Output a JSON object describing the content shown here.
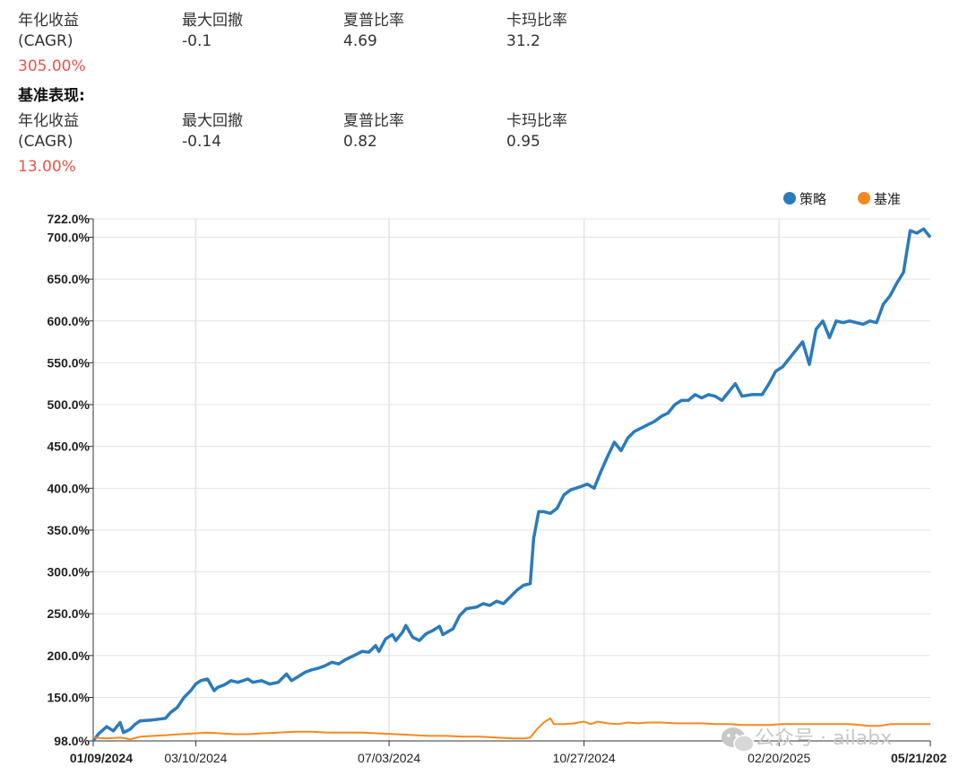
{
  "strategy_stats": {
    "cagr_label_1": "年化收益",
    "cagr_label_2": "(CAGR)",
    "cagr_value": "305.00%",
    "mdd_label": "最大回撤",
    "mdd_value": "-0.1",
    "sharpe_label": "夏普比率",
    "sharpe_value": "4.69",
    "calmar_label": "卡玛比率",
    "calmar_value": "31.2"
  },
  "benchmark_heading": "基准表现:",
  "benchmark_stats": {
    "cagr_label_1": "年化收益",
    "cagr_label_2": "(CAGR)",
    "cagr_value": "13.00%",
    "mdd_label": "最大回撤",
    "mdd_value": "-0.14",
    "sharpe_label": "夏普比率",
    "sharpe_value": "0.82",
    "calmar_label": "卡玛比率",
    "calmar_value": "0.95"
  },
  "watermark": "公众号 · ailabx",
  "chart_data": {
    "type": "line",
    "legend_position": "top-right",
    "grid": true,
    "x_tick_labels": [
      "01/09/2024",
      "03/10/2024",
      "07/03/2024",
      "10/27/2024",
      "02/20/2025",
      "05/21/202"
    ],
    "x_tick_days": [
      0,
      61,
      176,
      292,
      408,
      498
    ],
    "x_range_days": [
      0,
      498
    ],
    "y_ticks": [
      98,
      150,
      200,
      250,
      300,
      350,
      400,
      450,
      500,
      550,
      600,
      650,
      700,
      722
    ],
    "y_tick_labels": [
      "98.0%",
      "150.0%",
      "200.0%",
      "250.0%",
      "300.0%",
      "350.0%",
      "400.0%",
      "450.0%",
      "500.0%",
      "550.0%",
      "600.0%",
      "650.0%",
      "700.0%",
      "722.0%"
    ],
    "ylim": [
      98,
      722
    ],
    "series": [
      {
        "name": "策略",
        "color": "#2b7bba",
        "points": [
          [
            0,
            98
          ],
          [
            3,
            106
          ],
          [
            8,
            115
          ],
          [
            12,
            110
          ],
          [
            16,
            120
          ],
          [
            18,
            108
          ],
          [
            22,
            112
          ],
          [
            25,
            118
          ],
          [
            28,
            122
          ],
          [
            35,
            123
          ],
          [
            43,
            125
          ],
          [
            46,
            132
          ],
          [
            50,
            138
          ],
          [
            54,
            150
          ],
          [
            58,
            158
          ],
          [
            61,
            166
          ],
          [
            64,
            170
          ],
          [
            68,
            172
          ],
          [
            72,
            158
          ],
          [
            74,
            162
          ],
          [
            78,
            165
          ],
          [
            82,
            170
          ],
          [
            86,
            168
          ],
          [
            92,
            172
          ],
          [
            95,
            168
          ],
          [
            100,
            170
          ],
          [
            105,
            166
          ],
          [
            110,
            168
          ],
          [
            115,
            178
          ],
          [
            118,
            170
          ],
          [
            122,
            175
          ],
          [
            126,
            180
          ],
          [
            130,
            183
          ],
          [
            134,
            185
          ],
          [
            138,
            188
          ],
          [
            142,
            192
          ],
          [
            146,
            190
          ],
          [
            150,
            195
          ],
          [
            155,
            200
          ],
          [
            160,
            205
          ],
          [
            164,
            204
          ],
          [
            168,
            212
          ],
          [
            170,
            205
          ],
          [
            174,
            220
          ],
          [
            178,
            225
          ],
          [
            180,
            218
          ],
          [
            184,
            228
          ],
          [
            186,
            236
          ],
          [
            190,
            222
          ],
          [
            194,
            218
          ],
          [
            198,
            226
          ],
          [
            202,
            230
          ],
          [
            206,
            235
          ],
          [
            208,
            225
          ],
          [
            214,
            232
          ],
          [
            218,
            248
          ],
          [
            222,
            256
          ],
          [
            228,
            258
          ],
          [
            232,
            262
          ],
          [
            236,
            260
          ],
          [
            240,
            265
          ],
          [
            244,
            262
          ],
          [
            248,
            270
          ],
          [
            252,
            278
          ],
          [
            256,
            284
          ],
          [
            260,
            286
          ],
          [
            262,
            340
          ],
          [
            265,
            372
          ],
          [
            268,
            372
          ],
          [
            272,
            370
          ],
          [
            276,
            376
          ],
          [
            280,
            392
          ],
          [
            284,
            398
          ],
          [
            290,
            402
          ],
          [
            294,
            405
          ],
          [
            298,
            400
          ],
          [
            302,
            420
          ],
          [
            306,
            438
          ],
          [
            310,
            455
          ],
          [
            314,
            445
          ],
          [
            318,
            460
          ],
          [
            322,
            468
          ],
          [
            326,
            472
          ],
          [
            330,
            476
          ],
          [
            334,
            480
          ],
          [
            338,
            486
          ],
          [
            342,
            490
          ],
          [
            346,
            500
          ],
          [
            350,
            505
          ],
          [
            354,
            505
          ],
          [
            358,
            512
          ],
          [
            362,
            508
          ],
          [
            366,
            512
          ],
          [
            370,
            510
          ],
          [
            374,
            505
          ],
          [
            378,
            515
          ],
          [
            382,
            525
          ],
          [
            386,
            510
          ],
          [
            392,
            512
          ],
          [
            398,
            512
          ],
          [
            402,
            525
          ],
          [
            406,
            540
          ],
          [
            410,
            545
          ],
          [
            414,
            555
          ],
          [
            418,
            565
          ],
          [
            422,
            575
          ],
          [
            426,
            548
          ],
          [
            430,
            590
          ],
          [
            434,
            600
          ],
          [
            438,
            580
          ],
          [
            442,
            600
          ],
          [
            446,
            598
          ],
          [
            450,
            600
          ],
          [
            454,
            598
          ],
          [
            458,
            596
          ],
          [
            462,
            600
          ],
          [
            466,
            598
          ],
          [
            470,
            620
          ],
          [
            474,
            630
          ],
          [
            478,
            645
          ],
          [
            482,
            658
          ],
          [
            486,
            708
          ],
          [
            490,
            705
          ],
          [
            494,
            710
          ],
          [
            496,
            705
          ],
          [
            498,
            700
          ]
        ]
      },
      {
        "name": "基准",
        "color": "#f5891f",
        "points": [
          [
            0,
            102
          ],
          [
            8,
            101
          ],
          [
            16,
            102
          ],
          [
            22,
            100
          ],
          [
            28,
            103
          ],
          [
            36,
            104
          ],
          [
            44,
            105
          ],
          [
            52,
            106
          ],
          [
            60,
            107
          ],
          [
            68,
            108
          ],
          [
            76,
            107
          ],
          [
            84,
            106
          ],
          [
            92,
            106
          ],
          [
            100,
            107
          ],
          [
            110,
            108
          ],
          [
            120,
            109
          ],
          [
            130,
            109
          ],
          [
            140,
            108
          ],
          [
            150,
            108
          ],
          [
            160,
            108
          ],
          [
            170,
            107
          ],
          [
            180,
            106
          ],
          [
            190,
            105
          ],
          [
            200,
            104
          ],
          [
            210,
            104
          ],
          [
            220,
            103
          ],
          [
            230,
            103
          ],
          [
            240,
            102
          ],
          [
            250,
            101
          ],
          [
            256,
            101
          ],
          [
            260,
            102
          ],
          [
            264,
            112
          ],
          [
            268,
            120
          ],
          [
            272,
            125
          ],
          [
            274,
            118
          ],
          [
            280,
            118
          ],
          [
            286,
            119
          ],
          [
            292,
            121
          ],
          [
            296,
            118
          ],
          [
            300,
            121
          ],
          [
            306,
            119
          ],
          [
            312,
            118
          ],
          [
            318,
            120
          ],
          [
            324,
            119
          ],
          [
            330,
            120
          ],
          [
            338,
            120
          ],
          [
            346,
            119
          ],
          [
            354,
            119
          ],
          [
            362,
            119
          ],
          [
            370,
            118
          ],
          [
            378,
            118
          ],
          [
            386,
            117
          ],
          [
            394,
            117
          ],
          [
            402,
            117
          ],
          [
            410,
            118
          ],
          [
            418,
            118
          ],
          [
            426,
            118
          ],
          [
            434,
            118
          ],
          [
            442,
            118
          ],
          [
            450,
            118
          ],
          [
            456,
            117
          ],
          [
            462,
            116
          ],
          [
            468,
            116
          ],
          [
            474,
            118
          ],
          [
            480,
            118
          ],
          [
            486,
            118
          ],
          [
            492,
            118
          ],
          [
            498,
            118
          ]
        ]
      }
    ]
  }
}
